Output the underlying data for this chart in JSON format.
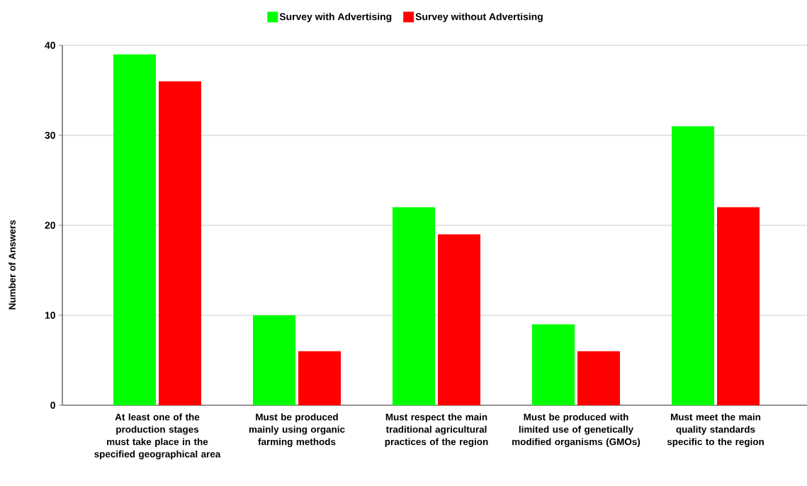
{
  "chart_data": {
    "type": "bar",
    "ylabel": "Number of Answers",
    "categories": [
      "At least one of the production stages must take place in the specified geographical area",
      "Must be produced mainly using organic farming methods",
      "Must respect the main traditional agricultural practices of the region",
      "Must be produced with limited use of genetically modified organisms (GMOs)",
      "Must meet the main quality standards specific to the region"
    ],
    "series": [
      {
        "name": "Survey with Advertising",
        "color": "#00ff00",
        "values": [
          39,
          10,
          22,
          9,
          31
        ]
      },
      {
        "name": "Survey without Advertising",
        "color": "#ff0000",
        "values": [
          36,
          6,
          19,
          6,
          22
        ]
      }
    ],
    "ylim": [
      0,
      40
    ],
    "yticks": [
      0,
      10,
      20,
      30,
      40
    ],
    "grid": "y",
    "legend": "top"
  }
}
